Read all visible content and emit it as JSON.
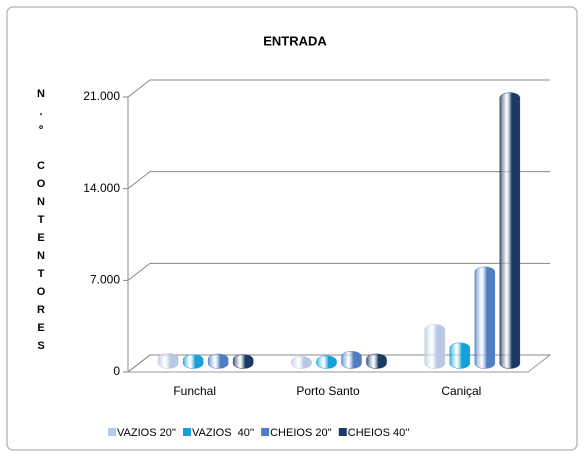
{
  "chart_data": {
    "type": "bar3d",
    "title": "ENTRADA",
    "y_label": "N.º CONTENTORES",
    "categories": [
      "Funchal",
      "Porto Santo",
      "Caniçal"
    ],
    "series": [
      {
        "name": "VAZIOS 20''",
        "color": "#b9c9e2",
        "values": [
          400,
          150,
          2600
        ]
      },
      {
        "name": "VAZIOS  40''",
        "color": "#16a0d8",
        "values": [
          300,
          200,
          1200
        ]
      },
      {
        "name": "CHEIOS 20''",
        "color": "#4f7fc0",
        "values": [
          350,
          550,
          7000
        ]
      },
      {
        "name": "CHEIOS 40''",
        "color": "#1c3a66",
        "values": [
          300,
          350,
          20300
        ]
      }
    ],
    "ylim": [
      0,
      21000
    ],
    "yticks": [
      0,
      {
        "value": 7000,
        "label": "7.000"
      },
      {
        "value": 14000,
        "label": "14.000"
      },
      {
        "value": 21000,
        "label": "21.000"
      }
    ],
    "grid": true
  }
}
